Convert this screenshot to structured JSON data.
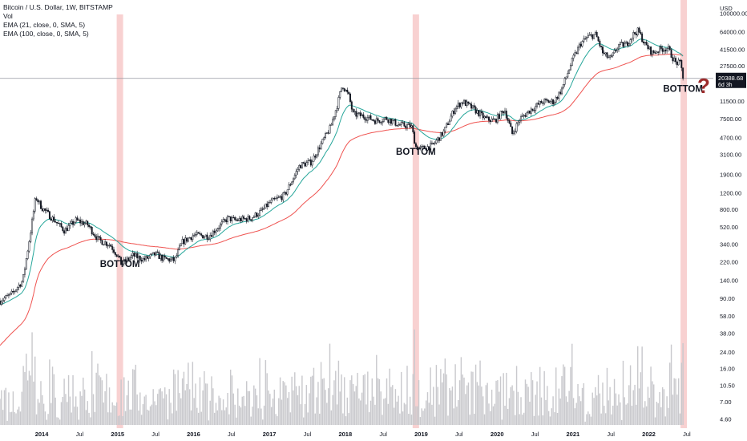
{
  "legend": {
    "symbol": "Bitcoin / U.S. Dollar, 1W, BITSTAMP",
    "vol": "Vol",
    "ema21": "EMA (21, close, 0, SMA, 5)",
    "ema100": "EMA (100, close, 0, SMA, 5)"
  },
  "price_badge": {
    "price": "20388.68",
    "countdown": "6d 3h"
  },
  "chart_data": {
    "type": "candlestick",
    "currency": "USD",
    "y_scale": "log",
    "ylim": [
      4.0,
      120000
    ],
    "xlim": [
      2013.45,
      2022.85
    ],
    "y_ticks": [
      "100000.00",
      "64000.00",
      "41500.00",
      "27500.00",
      "17500.00",
      "11500.00",
      "7500.00",
      "4700.00",
      "3100.00",
      "1900.00",
      "1200.00",
      "800.00",
      "520.00",
      "340.00",
      "220.00",
      "140.00",
      "90.00",
      "58.00",
      "38.00",
      "24.00",
      "16.00",
      "10.50",
      "7.00",
      "4.60"
    ],
    "x_ticks": [
      {
        "label": "2014",
        "t": 2014.0
      },
      {
        "label": "Jul",
        "t": 2014.5
      },
      {
        "label": "2015",
        "t": 2015.0
      },
      {
        "label": "Jul",
        "t": 2015.5
      },
      {
        "label": "2016",
        "t": 2016.0
      },
      {
        "label": "Jul",
        "t": 2016.5
      },
      {
        "label": "2017",
        "t": 2017.0
      },
      {
        "label": "Jul",
        "t": 2017.5
      },
      {
        "label": "2018",
        "t": 2018.0
      },
      {
        "label": "Jul",
        "t": 2018.5
      },
      {
        "label": "2019",
        "t": 2019.0
      },
      {
        "label": "Jul",
        "t": 2019.5
      },
      {
        "label": "2020",
        "t": 2020.0
      },
      {
        "label": "Jul",
        "t": 2020.5
      },
      {
        "label": "2021",
        "t": 2021.0
      },
      {
        "label": "Jul",
        "t": 2021.5
      },
      {
        "label": "2022",
        "t": 2022.0
      },
      {
        "label": "Jul",
        "t": 2022.5
      }
    ],
    "price_anchors": [
      [
        2013.45,
        85
      ],
      [
        2013.6,
        100
      ],
      [
        2013.75,
        140
      ],
      [
        2013.85,
        450
      ],
      [
        2013.92,
        1100
      ],
      [
        2014.0,
        850
      ],
      [
        2014.1,
        700
      ],
      [
        2014.2,
        580
      ],
      [
        2014.3,
        480
      ],
      [
        2014.45,
        620
      ],
      [
        2014.6,
        560
      ],
      [
        2014.75,
        380
      ],
      [
        2014.9,
        340
      ],
      [
        2015.0,
        260
      ],
      [
        2015.05,
        210
      ],
      [
        2015.2,
        260
      ],
      [
        2015.35,
        235
      ],
      [
        2015.5,
        270
      ],
      [
        2015.6,
        240
      ],
      [
        2015.75,
        230
      ],
      [
        2015.85,
        360
      ],
      [
        2016.0,
        430
      ],
      [
        2016.2,
        420
      ],
      [
        2016.45,
        650
      ],
      [
        2016.55,
        620
      ],
      [
        2016.75,
        650
      ],
      [
        2016.9,
        780
      ],
      [
        2017.0,
        950
      ],
      [
        2017.2,
        1150
      ],
      [
        2017.4,
        2400
      ],
      [
        2017.55,
        2600
      ],
      [
        2017.7,
        4300
      ],
      [
        2017.8,
        6000
      ],
      [
        2017.9,
        11000
      ],
      [
        2017.96,
        17500
      ],
      [
        2018.05,
        13000
      ],
      [
        2018.1,
        8500
      ],
      [
        2018.25,
        8000
      ],
      [
        2018.4,
        7200
      ],
      [
        2018.55,
        7600
      ],
      [
        2018.7,
        6500
      ],
      [
        2018.87,
        6300
      ],
      [
        2018.93,
        3800
      ],
      [
        2019.0,
        3600
      ],
      [
        2019.15,
        3900
      ],
      [
        2019.3,
        5500
      ],
      [
        2019.45,
        10000
      ],
      [
        2019.55,
        11500
      ],
      [
        2019.7,
        9500
      ],
      [
        2019.85,
        7500
      ],
      [
        2019.97,
        7200
      ],
      [
        2020.1,
        9500
      ],
      [
        2020.2,
        5200
      ],
      [
        2020.3,
        7500
      ],
      [
        2020.45,
        9500
      ],
      [
        2020.6,
        11500
      ],
      [
        2020.75,
        11500
      ],
      [
        2020.85,
        15500
      ],
      [
        2021.0,
        33000
      ],
      [
        2021.1,
        48000
      ],
      [
        2021.2,
        57000
      ],
      [
        2021.3,
        60000
      ],
      [
        2021.4,
        37000
      ],
      [
        2021.5,
        33000
      ],
      [
        2021.6,
        46000
      ],
      [
        2021.7,
        47000
      ],
      [
        2021.8,
        61000
      ],
      [
        2021.86,
        66000
      ],
      [
        2021.95,
        47000
      ],
      [
        2022.05,
        38000
      ],
      [
        2022.15,
        42000
      ],
      [
        2022.25,
        43000
      ],
      [
        2022.35,
        30000
      ],
      [
        2022.42,
        29500
      ],
      [
        2022.45,
        20388.68
      ]
    ],
    "bottom_markers": [
      {
        "label": "BOTTOM",
        "t": 2015.03,
        "price": 220
      },
      {
        "label": "BOTTOM",
        "t": 2018.93,
        "price": 3500
      },
      {
        "label": "BOTTOM",
        "t": 2022.45,
        "price": 16500
      }
    ],
    "highlight_bands_t": [
      2015.03,
      2018.93,
      2022.46
    ],
    "current_price_line": 20388.68,
    "question_mark": "?",
    "series": [
      {
        "name": "EMA (21, close, 0, SMA, 5)",
        "color": "#26a69a"
      },
      {
        "name": "EMA (100, close, 0, SMA, 5)",
        "color": "#ef5350"
      }
    ],
    "colors": {
      "candle": "#131722",
      "volume": "#c9c9cd",
      "band": "#f7c9c9",
      "badge": "#131722",
      "question": "#9c2b2b",
      "grid": "#e0e3eb"
    }
  }
}
